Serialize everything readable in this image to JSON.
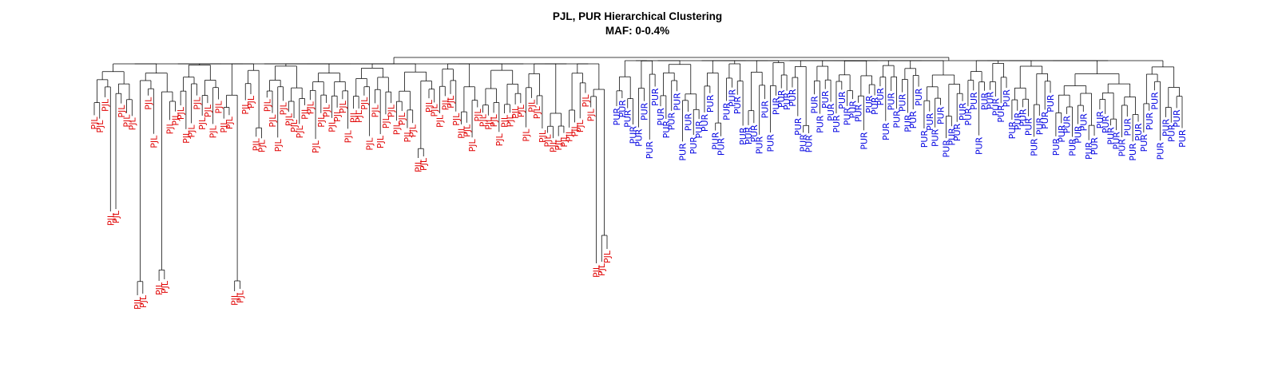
{
  "title": {
    "line1": "PJL, PUR Hierarchical Clustering",
    "line2": "MAF: 0-0.4%"
  },
  "colors": {
    "PJL": "#e00000",
    "PUR": "#0000e0",
    "branch": "#000000"
  },
  "dendrogram": {
    "clusters": [
      {
        "name": "PJL",
        "leaves": [
          "PJL",
          "PJL",
          "PJL",
          "PJL",
          "PJL",
          "PJL",
          "PJL",
          "PJL",
          "PJL",
          "PJL",
          "PJL",
          "PJL",
          "PJL",
          "PJL",
          "PJL",
          "PJL",
          "PJL",
          "PJL",
          "PJL",
          "PJL",
          "PJL",
          "PJL",
          "PJL",
          "PJL",
          "PJL",
          "PJL",
          "PJL",
          "PJL",
          "PJL",
          "PJL",
          "PJL",
          "PJL",
          "PJL",
          "PJL",
          "PJL",
          "PJL",
          "PJL",
          "PJL",
          "PJL",
          "PJL",
          "PJL",
          "PJL",
          "PJL",
          "PJL",
          "PJL",
          "PJL",
          "PJL",
          "PJL",
          "PJL",
          "PJL",
          "PJL",
          "PJL",
          "PJL",
          "PJL",
          "PJL",
          "PJL",
          "PJL",
          "PJL",
          "PJL",
          "PJL",
          "PJL",
          "PJL",
          "PJL",
          "PJL",
          "PJL",
          "PJL",
          "PJL",
          "PJL",
          "PJL",
          "PJL",
          "PJL",
          "PJL",
          "PJL",
          "PJL",
          "PJL",
          "PJL",
          "PJL",
          "PJL",
          "PJL",
          "PJL",
          "PJL",
          "PJL",
          "PJL",
          "PJL",
          "PJL",
          "PJL",
          "PJL",
          "PJL",
          "PJL",
          "PJL",
          "PJL",
          "PJL",
          "PJL",
          "PJL",
          "PJL",
          "PJL"
        ]
      },
      {
        "name": "PUR",
        "leaves": [
          "PUR",
          "PUR",
          "PUR",
          "PUR",
          "PUR",
          "PUR",
          "PUR",
          "PUR",
          "PUR",
          "PUR",
          "PUR",
          "PUR",
          "PUR",
          "PUR",
          "PUR",
          "PUR",
          "PUR",
          "PUR",
          "PUR",
          "PUR",
          "PUR",
          "PUR",
          "PUR",
          "PUR",
          "PUR",
          "PUR",
          "PUR",
          "PUR",
          "PUR",
          "PUR",
          "PUR",
          "PUR",
          "PUR",
          "PUR",
          "PUR",
          "PUR",
          "PUR",
          "PUR",
          "PUR",
          "PUR",
          "PUR",
          "PUR",
          "PUR",
          "PUR",
          "PUR",
          "PUR",
          "PUR",
          "PUR",
          "PUR",
          "PUR",
          "PUR",
          "PUR",
          "PUR",
          "PUR",
          "PUR",
          "PUR",
          "PUR",
          "PUR",
          "PUR",
          "PUR",
          "PUR",
          "PUR",
          "PUR",
          "PUR",
          "PUR",
          "PUR",
          "PUR",
          "PUR",
          "PUR",
          "PUR",
          "PUR",
          "PUR",
          "PUR",
          "PUR",
          "PUR",
          "PUR",
          "PUR",
          "PUR",
          "PUR",
          "PUR",
          "PUR",
          "PUR",
          "PUR",
          "PUR",
          "PUR",
          "PUR",
          "PUR",
          "PUR",
          "PUR",
          "PUR",
          "PUR",
          "PUR",
          "PUR",
          "PUR",
          "PUR",
          "PUR",
          "PUR",
          "PUR",
          "PUR",
          "PUR",
          "PUR",
          "PUR",
          "PUR",
          "PUR"
        ]
      }
    ]
  }
}
